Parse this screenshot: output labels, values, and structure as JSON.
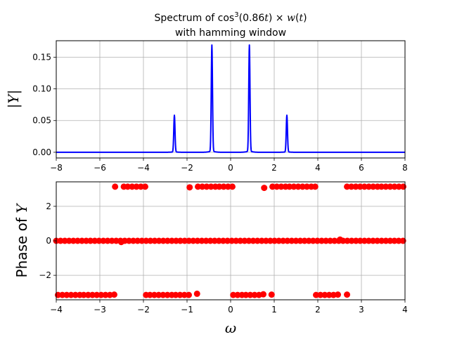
{
  "chart_data": [
    {
      "type": "line",
      "title_line1_prefix": "Spectrum of cos",
      "title_line1_sup": "3",
      "title_line1_mid": "(0.86",
      "title_line1_t1": "t",
      "title_line1_times": ") × ",
      "title_line1_w": "w",
      "title_line1_open": "(",
      "title_line1_t2": "t",
      "title_line1_close": ")",
      "title_line2": "with hamming window",
      "ylabel": "|Y|",
      "xlabel": "",
      "xlim": [
        -8,
        8
      ],
      "ylim": [
        -0.009,
        0.176
      ],
      "xticks": [
        "−8",
        "−6",
        "−4",
        "−2",
        "0",
        "2",
        "4",
        "6",
        "8"
      ],
      "yticks": [
        "0.00",
        "0.05",
        "0.10",
        "0.15"
      ],
      "xtick_values": [
        -8,
        -6,
        -4,
        -2,
        0,
        2,
        4,
        6,
        8
      ],
      "ytick_values": [
        0,
        0.05,
        0.1,
        0.15
      ],
      "grid": true,
      "color": "#0000ff",
      "peaks": [
        {
          "x": -2.58,
          "y": 0.058
        },
        {
          "x": -0.86,
          "y": 0.168
        },
        {
          "x": 0.86,
          "y": 0.168
        },
        {
          "x": 2.58,
          "y": 0.058
        }
      ]
    },
    {
      "type": "scatter",
      "ylabel": "Phase of Y",
      "ylabel_prefix": "Phase of ",
      "ylabel_var": "Y",
      "xlabel": "ω",
      "xlim": [
        -4,
        4
      ],
      "ylim": [
        -3.42,
        3.42
      ],
      "xticks": [
        "−4",
        "−3",
        "−2",
        "−1",
        "0",
        "1",
        "2",
        "3",
        "4"
      ],
      "yticks": [
        "−2",
        "0",
        "2"
      ],
      "xtick_values": [
        -4,
        -3,
        -2,
        -1,
        0,
        1,
        2,
        3,
        4
      ],
      "ytick_values": [
        -2,
        0,
        2
      ],
      "grid": true,
      "color": "#ff0000",
      "points": {
        "zero_line": {
          "from": -4,
          "to": 4,
          "step": 0.0982,
          "y": 0
        },
        "top": [
          [
            -2.65,
            3.14
          ],
          [
            -2.45,
            3.14
          ],
          [
            -2.36,
            3.14
          ],
          [
            -2.26,
            3.14
          ],
          [
            -2.16,
            3.14
          ],
          [
            -2.06,
            3.14
          ],
          [
            -1.96,
            3.14
          ],
          [
            -0.94,
            3.1
          ],
          [
            -0.75,
            3.14
          ],
          [
            -0.65,
            3.14
          ],
          [
            -0.55,
            3.14
          ],
          [
            -0.45,
            3.14
          ],
          [
            -0.35,
            3.14
          ],
          [
            -0.26,
            3.14
          ],
          [
            -0.16,
            3.14
          ],
          [
            -0.06,
            3.14
          ],
          [
            0.04,
            3.14
          ],
          [
            0.77,
            3.07
          ],
          [
            0.96,
            3.14
          ],
          [
            1.06,
            3.14
          ],
          [
            1.16,
            3.14
          ],
          [
            1.26,
            3.14
          ],
          [
            1.35,
            3.14
          ],
          [
            1.45,
            3.14
          ],
          [
            1.55,
            3.14
          ],
          [
            1.65,
            3.14
          ],
          [
            1.75,
            3.14
          ],
          [
            1.85,
            3.14
          ],
          [
            1.94,
            3.14
          ],
          [
            2.67,
            3.14
          ],
          [
            2.77,
            3.14
          ],
          [
            2.87,
            3.14
          ],
          [
            2.97,
            3.14
          ],
          [
            3.07,
            3.14
          ],
          [
            3.17,
            3.14
          ],
          [
            3.27,
            3.14
          ],
          [
            3.37,
            3.14
          ],
          [
            3.46,
            3.14
          ],
          [
            3.56,
            3.14
          ],
          [
            3.66,
            3.14
          ],
          [
            3.76,
            3.14
          ],
          [
            3.86,
            3.14
          ],
          [
            3.96,
            3.14
          ]
        ],
        "bottom": [
          [
            -3.96,
            -3.14
          ],
          [
            -3.86,
            -3.14
          ],
          [
            -3.76,
            -3.14
          ],
          [
            -3.66,
            -3.14
          ],
          [
            -3.56,
            -3.14
          ],
          [
            -3.46,
            -3.14
          ],
          [
            -3.37,
            -3.14
          ],
          [
            -3.27,
            -3.14
          ],
          [
            -3.17,
            -3.14
          ],
          [
            -3.07,
            -3.14
          ],
          [
            -2.97,
            -3.14
          ],
          [
            -2.87,
            -3.14
          ],
          [
            -2.77,
            -3.14
          ],
          [
            -2.67,
            -3.12
          ],
          [
            -1.94,
            -3.14
          ],
          [
            -1.85,
            -3.14
          ],
          [
            -1.75,
            -3.14
          ],
          [
            -1.65,
            -3.14
          ],
          [
            -1.55,
            -3.14
          ],
          [
            -1.45,
            -3.14
          ],
          [
            -1.35,
            -3.14
          ],
          [
            -1.26,
            -3.14
          ],
          [
            -1.16,
            -3.14
          ],
          [
            -1.06,
            -3.14
          ],
          [
            -0.96,
            -3.14
          ],
          [
            -0.77,
            -3.07
          ],
          [
            0.06,
            -3.14
          ],
          [
            0.16,
            -3.14
          ],
          [
            0.26,
            -3.14
          ],
          [
            0.35,
            -3.14
          ],
          [
            0.45,
            -3.14
          ],
          [
            0.55,
            -3.14
          ],
          [
            0.65,
            -3.14
          ],
          [
            0.75,
            -3.1
          ],
          [
            0.94,
            -3.12
          ],
          [
            1.96,
            -3.14
          ],
          [
            2.06,
            -3.14
          ],
          [
            2.16,
            -3.14
          ],
          [
            2.26,
            -3.14
          ],
          [
            2.36,
            -3.14
          ],
          [
            2.46,
            -3.12
          ],
          [
            2.67,
            -3.12
          ]
        ],
        "near_zero": [
          [
            -2.51,
            -0.07
          ],
          [
            2.51,
            0.07
          ]
        ]
      }
    }
  ]
}
